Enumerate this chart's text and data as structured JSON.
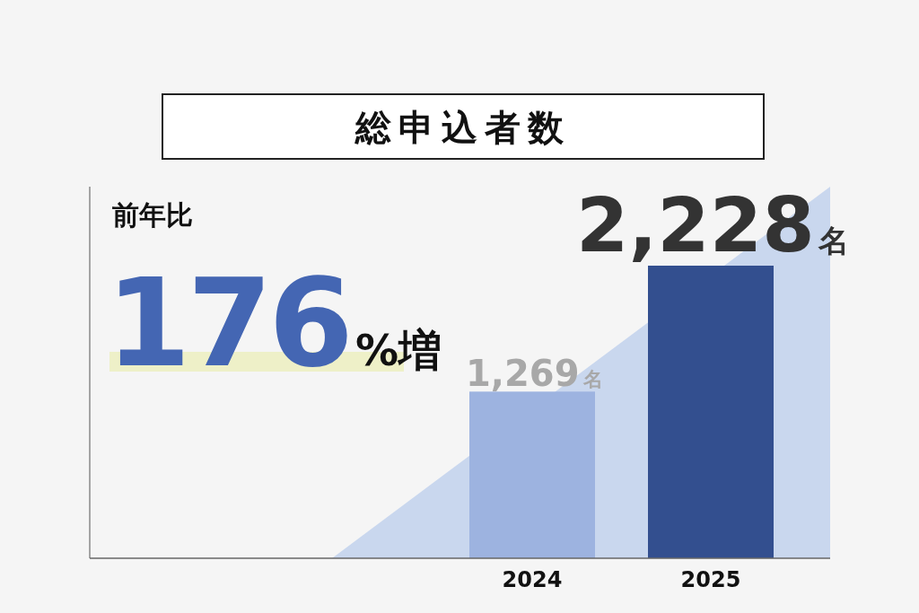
{
  "chart_data": {
    "type": "bar",
    "title": "総申込者数",
    "categories": [
      "2024",
      "2025"
    ],
    "values": [
      1269,
      2228
    ],
    "colors": [
      "#9db3e0",
      "#334f8f"
    ],
    "value_labels": [
      "1,269名",
      "2,228名"
    ],
    "tick_labels": "x",
    "annotations": [
      "前年比",
      "176%増"
    ]
  }
}
